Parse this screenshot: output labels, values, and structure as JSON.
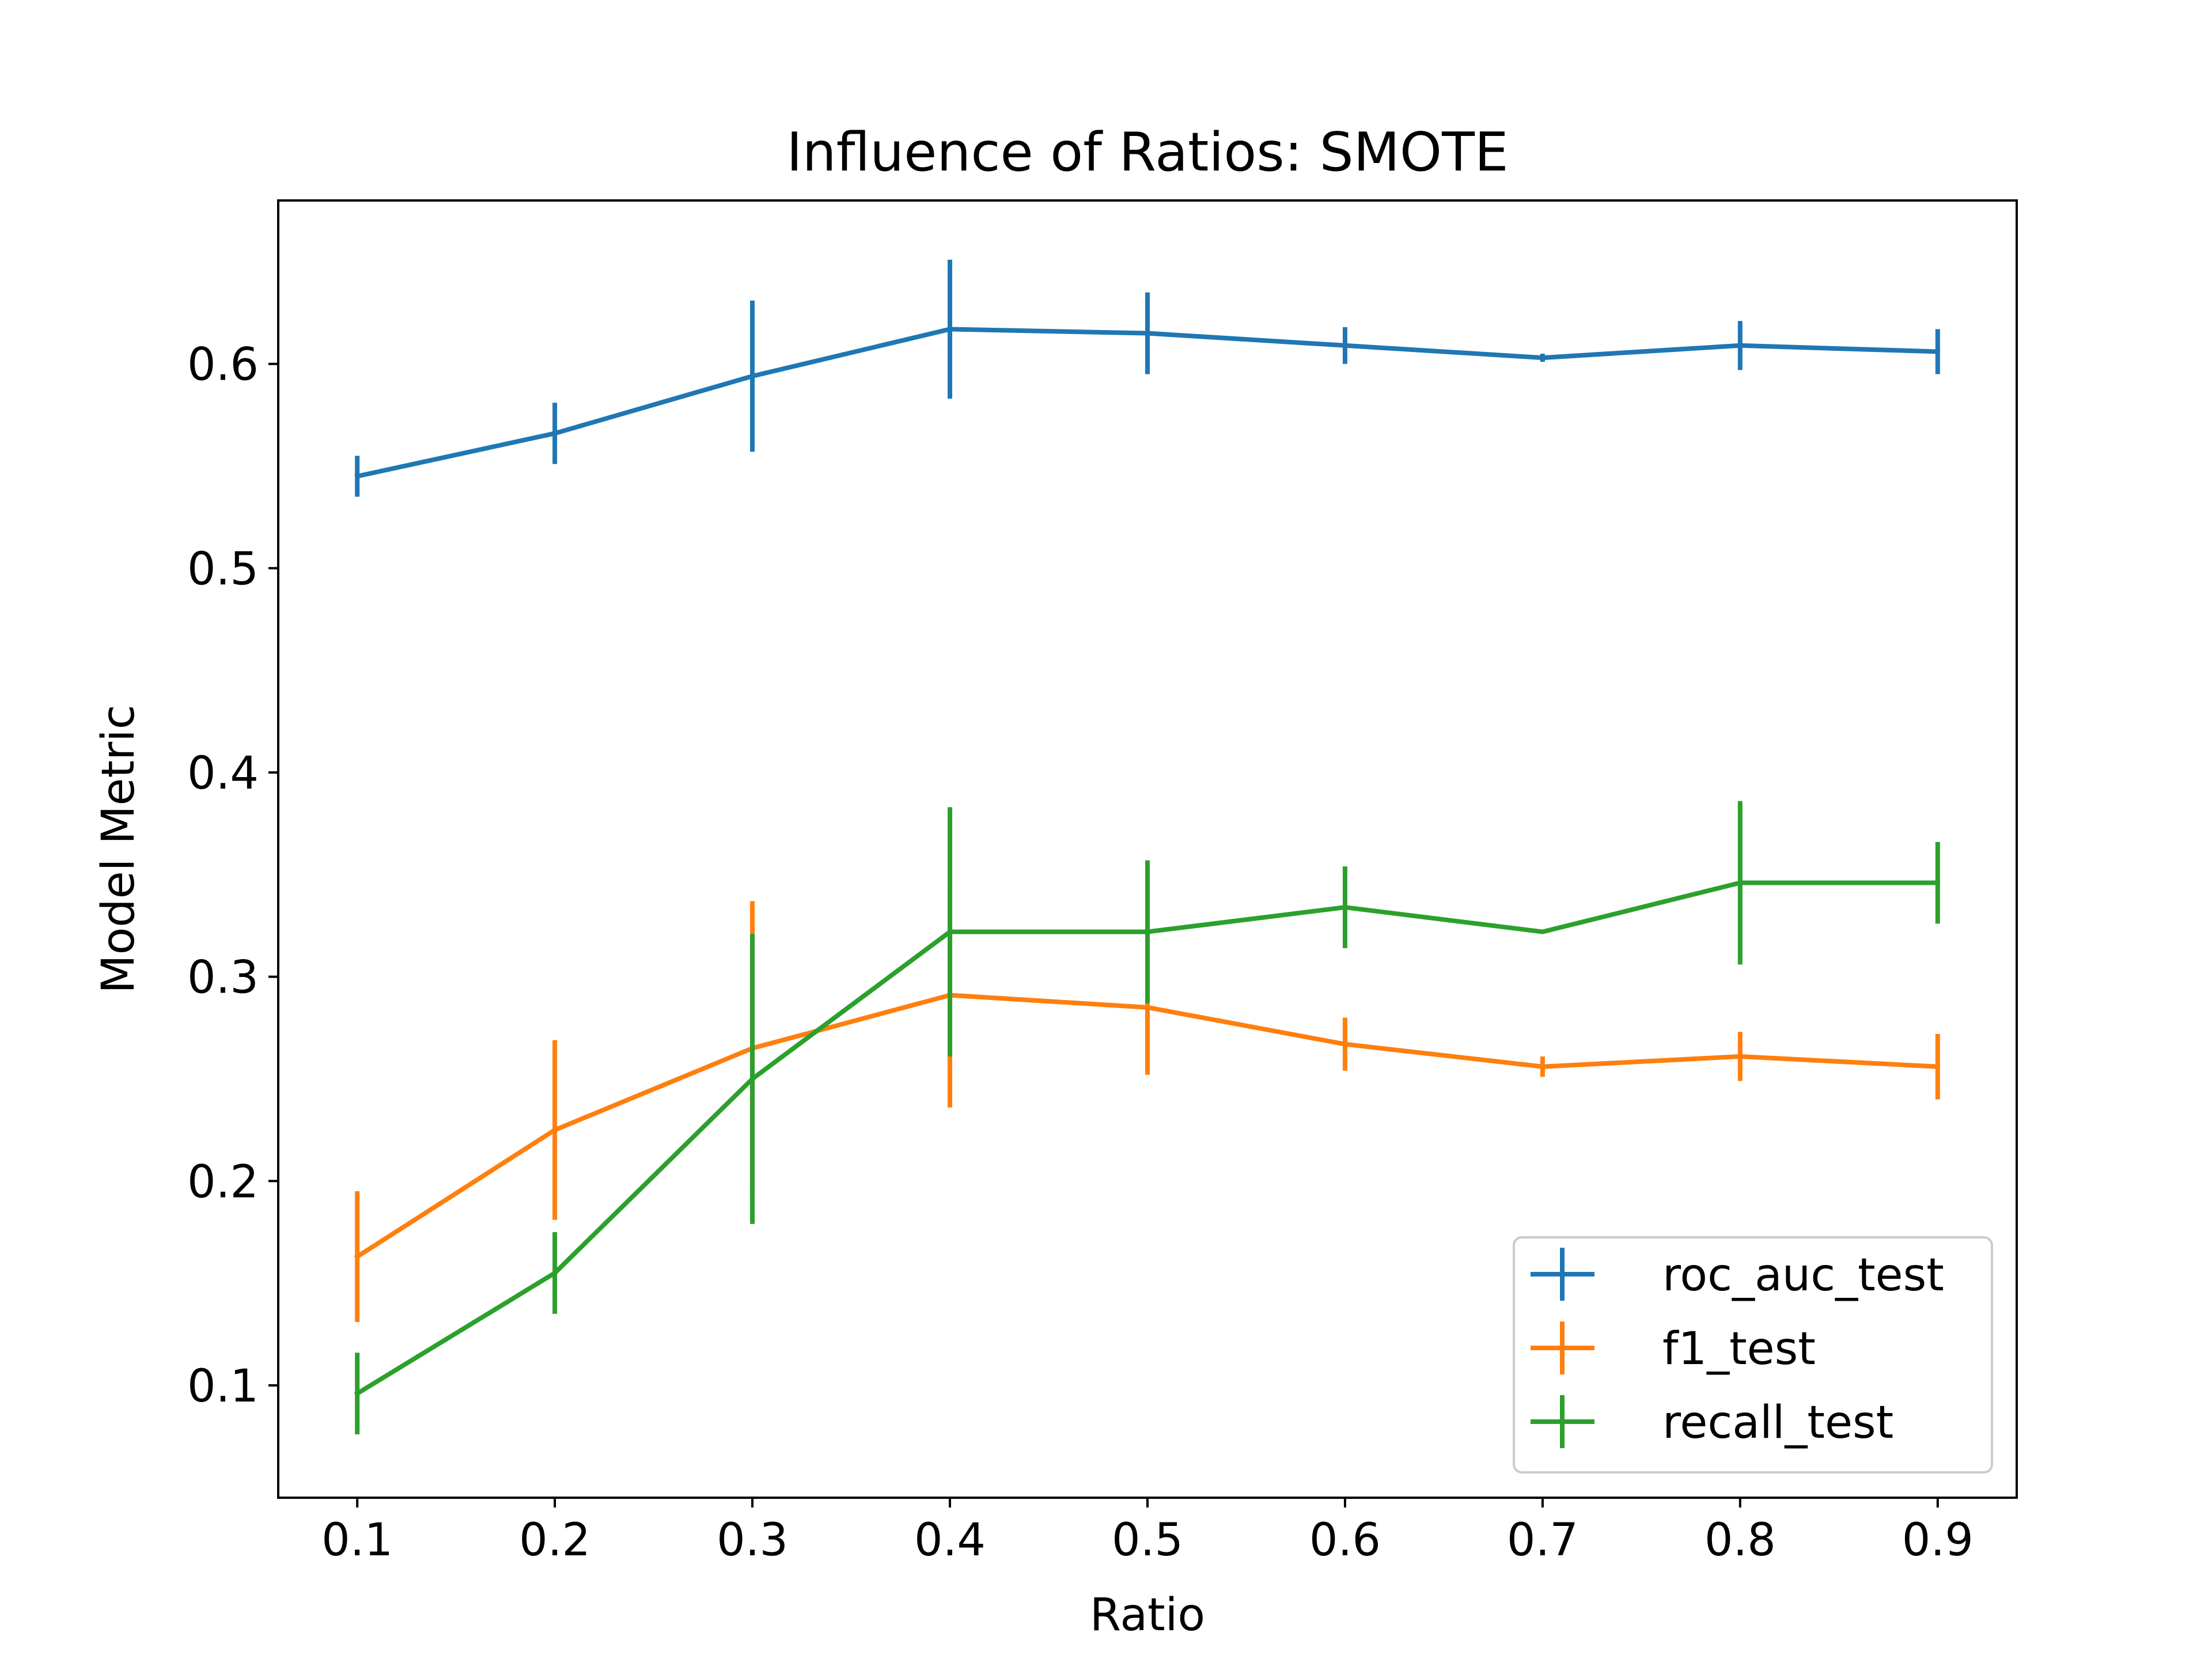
{
  "chart_data": {
    "type": "line",
    "title": "Influence of Ratios: SMOTE",
    "xlabel": "Ratio",
    "ylabel": "Model Metric",
    "x": [
      0.1,
      0.2,
      0.3,
      0.4,
      0.5,
      0.6,
      0.7,
      0.8,
      0.9
    ],
    "xticks": [
      "0.1",
      "0.2",
      "0.3",
      "0.4",
      "0.5",
      "0.6",
      "0.7",
      "0.8",
      "0.9"
    ],
    "yticks": [
      "0.1",
      "0.2",
      "0.3",
      "0.4",
      "0.5",
      "0.6"
    ],
    "ytick_values": [
      0.1,
      0.2,
      0.3,
      0.4,
      0.5,
      0.6
    ],
    "xlim": [
      0.06,
      0.94
    ],
    "ylim": [
      0.045,
      0.68
    ],
    "grid": false,
    "legend": "lower-right",
    "series": [
      {
        "name": "roc_auc_test",
        "color": "#1f77b4",
        "values": [
          0.545,
          0.566,
          0.594,
          0.617,
          0.615,
          0.609,
          0.603,
          0.609,
          0.606
        ],
        "errors": [
          0.01,
          0.015,
          0.037,
          0.034,
          0.02,
          0.009,
          0.002,
          0.012,
          0.011
        ]
      },
      {
        "name": "f1_test",
        "color": "#ff7f0e",
        "values": [
          0.163,
          0.225,
          0.265,
          0.291,
          0.285,
          0.267,
          0.256,
          0.261,
          0.256
        ],
        "errors": [
          0.032,
          0.044,
          0.072,
          0.055,
          0.033,
          0.013,
          0.005,
          0.012,
          0.016
        ]
      },
      {
        "name": "recall_test",
        "color": "#2ca02c",
        "values": [
          0.096,
          0.155,
          0.25,
          0.322,
          0.322,
          0.334,
          0.322,
          0.346,
          0.346
        ],
        "errors": [
          0.02,
          0.02,
          0.071,
          0.061,
          0.035,
          0.02,
          0.0,
          0.04,
          0.02
        ]
      }
    ]
  }
}
